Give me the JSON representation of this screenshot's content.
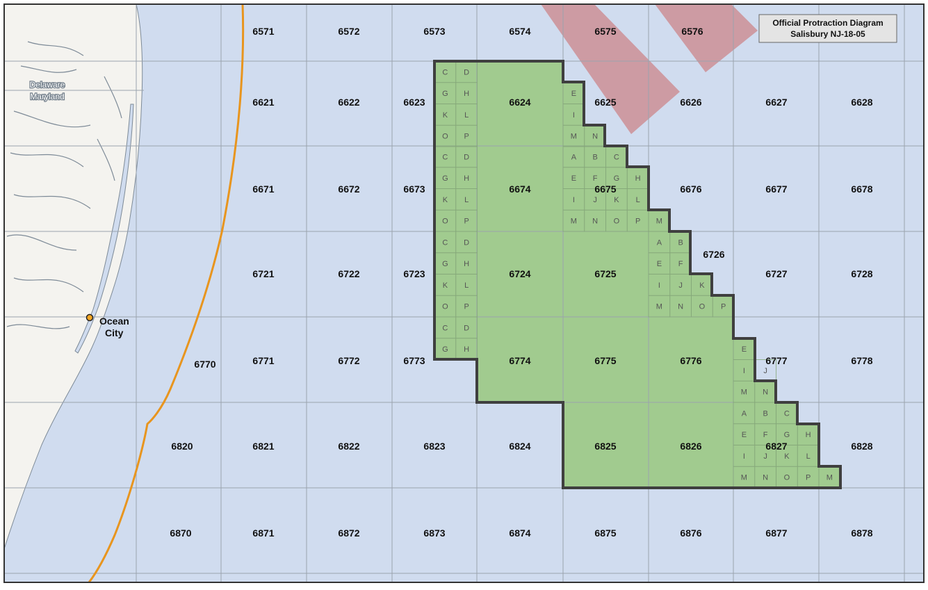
{
  "title": {
    "line1": "Official Protraction Diagram",
    "line2": "Salisbury NJ-18-05"
  },
  "place": {
    "name_line1": "Ocean",
    "name_line2": "City"
  },
  "states": {
    "north": "Delaware",
    "south": "Maryland"
  },
  "colors": {
    "ocean": "#d0dcef",
    "land": "#f4f3ef",
    "lease_area": "#a1cb8f",
    "lease_outline": "#3f3f3f",
    "grid": "#9aa3ae",
    "boundary_line": "#e8951e",
    "restricted_zone": "#cd8f95",
    "city_marker": "#f5a623"
  },
  "blocks": {
    "rows": [
      [
        "",
        "6571",
        "6572",
        "6573",
        "6574",
        "6575",
        "6576",
        "",
        "",
        ""
      ],
      [
        "",
        "6621",
        "6622",
        "6623",
        "6624",
        "6625",
        "6626",
        "6627",
        "6628",
        ""
      ],
      [
        "",
        "6671",
        "6672",
        "6673",
        "6674",
        "6675",
        "6676",
        "6677",
        "6678",
        ""
      ],
      [
        "",
        "6721",
        "6722",
        "6723",
        "6724",
        "6725",
        "6726",
        "6727",
        "6728",
        ""
      ],
      [
        "6770",
        "6771",
        "6772",
        "6773",
        "6774",
        "6775",
        "6776",
        "6777",
        "6778",
        ""
      ],
      [
        "6820",
        "6821",
        "6822",
        "6823",
        "6824",
        "6825",
        "6826",
        "6827",
        "6828",
        ""
      ],
      [
        "6870",
        "6871",
        "6872",
        "6873",
        "6874",
        "6875",
        "6876",
        "6877",
        "6878",
        ""
      ]
    ]
  },
  "sub_blocks": {
    "col_6623": [
      "C",
      "D",
      "G",
      "H",
      "K",
      "L",
      "O",
      "P"
    ],
    "col_6673": [
      "C",
      "D",
      "G",
      "H",
      "K",
      "L",
      "O",
      "P"
    ],
    "col_6723": [
      "C",
      "D",
      "G",
      "H",
      "K",
      "L",
      "O",
      "P"
    ],
    "col_6773": [
      "C",
      "D",
      "G",
      "H"
    ],
    "block_6625": [
      "E",
      "I",
      "M",
      "N"
    ],
    "block_6675": [
      "A",
      "B",
      "C",
      "E",
      "F",
      "G",
      "H",
      "I",
      "J",
      "K",
      "L",
      "M",
      "N",
      "O",
      "P"
    ],
    "block_6676": [
      "M"
    ],
    "block_6726": [
      "A",
      "B",
      "E",
      "F",
      "I",
      "J",
      "K",
      "M",
      "N",
      "O",
      "P"
    ],
    "block_6777": [
      "E",
      "I",
      "J",
      "M",
      "N"
    ],
    "block_6827": [
      "A",
      "B",
      "C",
      "E",
      "F",
      "G",
      "H",
      "I",
      "J",
      "K",
      "L",
      "M",
      "N",
      "O",
      "P"
    ],
    "block_6828": [
      "M"
    ]
  }
}
